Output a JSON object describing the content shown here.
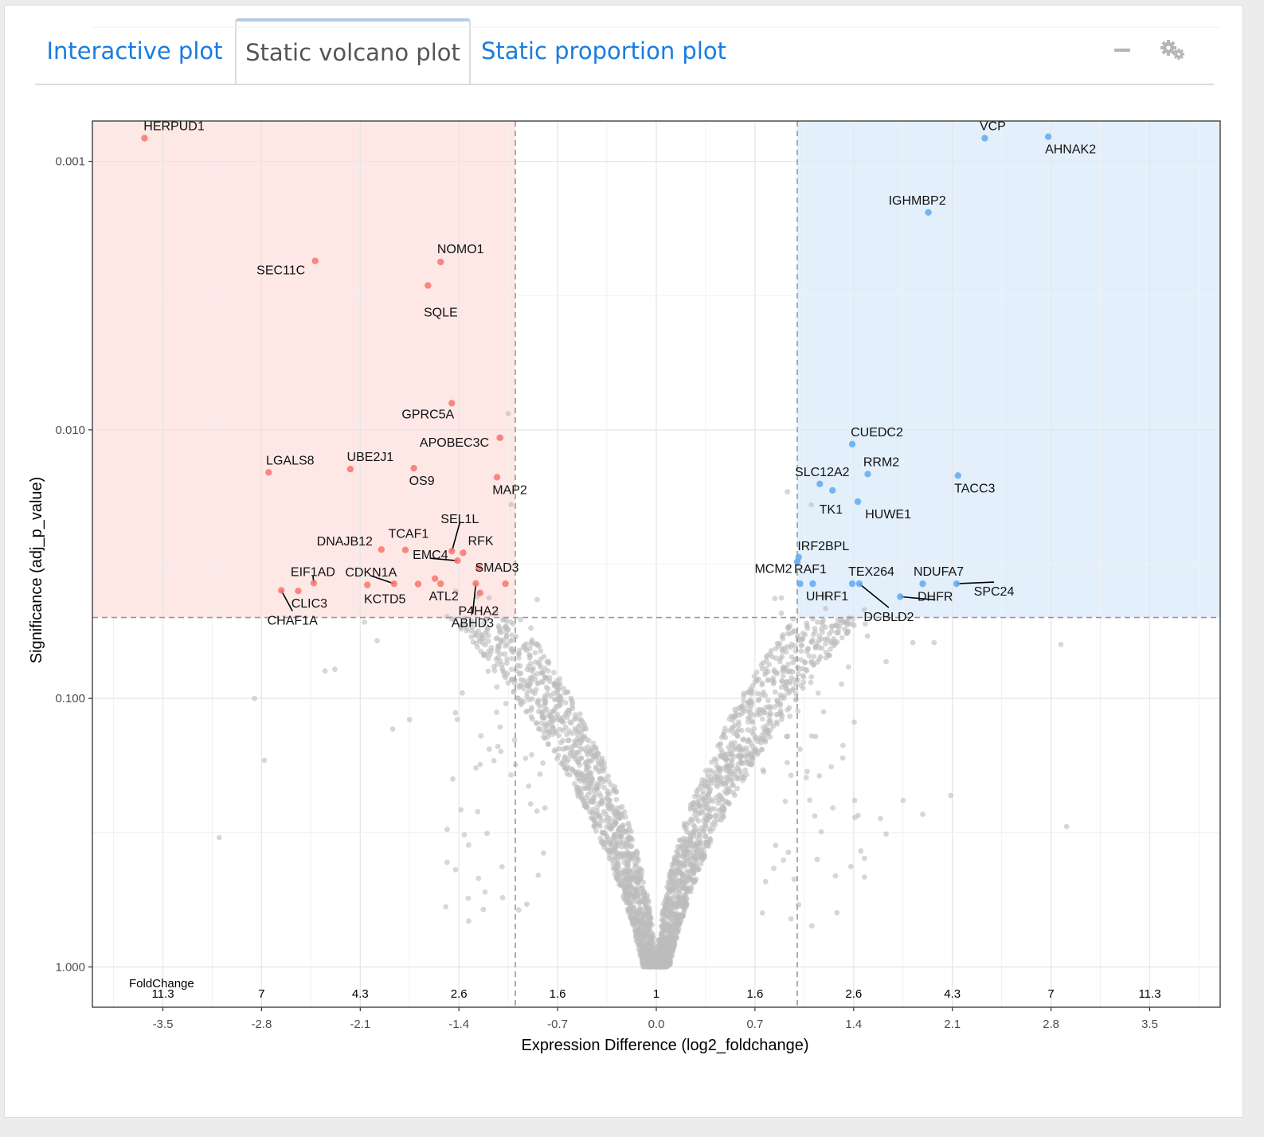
{
  "tabs": [
    {
      "label": "Interactive plot",
      "active": false
    },
    {
      "label": "Static volcano plot",
      "active": true
    },
    {
      "label": "Static proportion plot",
      "active": false
    }
  ],
  "toolbar": {
    "minimize_icon": "minus-icon",
    "settings_icon": "gears-icon"
  },
  "colors": {
    "down": "#f8766d",
    "up": "#61a9f2",
    "neutral": "#bdbdbd",
    "down_region": "#fde8e6",
    "up_region": "#e3f0fc",
    "tab_link": "#1a7ce0"
  },
  "chart_data": {
    "type": "scatter",
    "title": "",
    "xlabel": "Expression Difference (log2_foldchange)",
    "ylabel": "Significance (adj_p_value)",
    "xlim": [
      -4.0,
      4.0
    ],
    "ylim_log10": [
      0.15,
      -3.15
    ],
    "y_scale": "log10, reversed",
    "grid": true,
    "x_ticks": [
      -3.5,
      -2.8,
      -2.1,
      -1.4,
      -0.7,
      0.0,
      0.7,
      1.4,
      2.1,
      2.8,
      3.5
    ],
    "x_tick_labels": [
      "-3.5",
      "-2.8",
      "-2.1",
      "-1.4",
      "-0.7",
      "0.0",
      "0.7",
      "1.4",
      "2.1",
      "2.8",
      "3.5"
    ],
    "y_ticks": [
      0.001,
      0.01,
      0.1,
      1.0
    ],
    "y_tick_labels": [
      "0.001",
      "0.010",
      "0.100",
      "1.000"
    ],
    "foldchange_title": "FoldChange",
    "foldchange_labels": [
      "11.3",
      "7",
      "4.3",
      "2.6",
      "1.6",
      "1",
      "1.6",
      "2.6",
      "4.3",
      "7",
      "11.3"
    ],
    "thresholds": {
      "log2fc": [
        -1.0,
        1.0
      ],
      "adj_p": 0.05
    },
    "significant_down": [
      {
        "gene": "HERPUD1",
        "x": -3.63,
        "y": 0.00082
      },
      {
        "gene": "SEC11C",
        "x": -2.42,
        "y": 0.00235
      },
      {
        "gene": "NOMO1",
        "x": -1.53,
        "y": 0.00237
      },
      {
        "gene": "SQLE",
        "x": -1.62,
        "y": 0.0029
      },
      {
        "gene": "GPRC5A",
        "x": -1.45,
        "y": 0.00795
      },
      {
        "gene": "APOBEC3C",
        "x": -1.11,
        "y": 0.0107
      },
      {
        "gene": "LGALS8",
        "x": -2.75,
        "y": 0.0144
      },
      {
        "gene": "UBE2J1",
        "x": -2.17,
        "y": 0.014
      },
      {
        "gene": "OS9",
        "x": -1.72,
        "y": 0.0139
      },
      {
        "gene": "MAP2",
        "x": -1.13,
        "y": 0.015
      },
      {
        "gene": "SEL1L",
        "x": -1.45,
        "y": 0.0283
      },
      {
        "gene": "RFK",
        "x": -1.37,
        "y": 0.0287
      },
      {
        "gene": "DNAJB12",
        "x": -1.95,
        "y": 0.0279
      },
      {
        "gene": "TCAF1",
        "x": -1.78,
        "y": 0.028
      },
      {
        "gene": "EMC4",
        "x": -1.41,
        "y": 0.0307
      },
      {
        "gene": "SMAD3",
        "x": -1.26,
        "y": 0.0326
      },
      {
        "gene": "EIF1AD",
        "x": -2.43,
        "y": 0.0372
      },
      {
        "gene": "CDKN1A",
        "x": -1.86,
        "y": 0.0374
      },
      {
        "gene": "KCTD5",
        "x": -2.05,
        "y": 0.0378
      },
      {
        "gene": "ATL2",
        "x": -1.53,
        "y": 0.0374
      },
      {
        "gene": "P4HA2",
        "x": -1.25,
        "y": 0.0405
      },
      {
        "gene": "ABHD3",
        "x": -1.28,
        "y": 0.0373
      },
      {
        "gene": "CLIC3",
        "x": -2.54,
        "y": 0.0398
      },
      {
        "gene": "CHAF1A",
        "x": -2.66,
        "y": 0.0396
      },
      {
        "gene": "-",
        "x": -1.69,
        "y": 0.0375
      },
      {
        "gene": "-",
        "x": -1.57,
        "y": 0.0358
      },
      {
        "gene": "-",
        "x": -1.07,
        "y": 0.0374
      }
    ],
    "significant_up": [
      {
        "gene": "VCP",
        "x": 2.33,
        "y": 0.00082
      },
      {
        "gene": "AHNAK2",
        "x": 2.78,
        "y": 0.00081
      },
      {
        "gene": "IGHMBP2",
        "x": 1.93,
        "y": 0.00155
      },
      {
        "gene": "CUEDC2",
        "x": 1.39,
        "y": 0.0113
      },
      {
        "gene": "RRM2",
        "x": 1.5,
        "y": 0.0146
      },
      {
        "gene": "TACC3",
        "x": 2.14,
        "y": 0.0148
      },
      {
        "gene": "SLC12A2",
        "x": 1.16,
        "y": 0.0159
      },
      {
        "gene": "TK1",
        "x": 1.25,
        "y": 0.0168
      },
      {
        "gene": "HUWE1",
        "x": 1.43,
        "y": 0.0185
      },
      {
        "gene": "IRF2BPL",
        "x": 1.01,
        "y": 0.0298
      },
      {
        "gene": "RAF1",
        "x": 1.02,
        "y": 0.0374
      },
      {
        "gene": "UHRF1",
        "x": 1.11,
        "y": 0.0374
      },
      {
        "gene": "TEX264",
        "x": 1.39,
        "y": 0.0374
      },
      {
        "gene": "DCBLD2",
        "x": 1.44,
        "y": 0.0374
      },
      {
        "gene": "NDUFA7",
        "x": 1.89,
        "y": 0.0374
      },
      {
        "gene": "DHFR",
        "x": 1.73,
        "y": 0.0418
      },
      {
        "gene": "SPC24",
        "x": 2.13,
        "y": 0.0374
      },
      {
        "gene": "MCM2",
        "x": 1.0,
        "y": 0.031
      }
    ],
    "neutral_points": "approx. 3000 non-significant genes forming a V-shaped cloud centred at log2FC 0 (adj_p from about 0.05 to 1.0)"
  }
}
